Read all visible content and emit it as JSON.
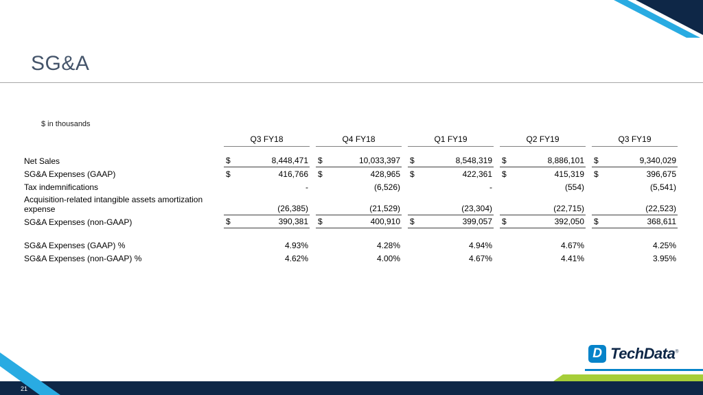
{
  "colors": {
    "brand_navy": "#0e2747",
    "brand_cyan": "#29abe2",
    "brand_green": "#a6ce39",
    "brand_blue": "#0683c9",
    "title_color": "#44546a",
    "rule_gray": "#a6a6a6",
    "line_dark": "#3d3d3d",
    "line_header": "#808080"
  },
  "slide": {
    "title": "SG&A",
    "page_number": "21"
  },
  "table": {
    "units_note": "$ in thousands",
    "currency_symbol": "$",
    "columns": [
      "Q3 FY18",
      "Q4 FY18",
      "Q1 FY19",
      "Q2 FY19",
      "Q3 FY19"
    ],
    "rows": [
      {
        "label": "Net Sales",
        "dollar": true,
        "underline": true,
        "values": [
          "8,448,471",
          "10,033,397",
          "8,548,319",
          "8,886,101",
          "9,340,029"
        ]
      },
      {
        "label": "SG&A Expenses (GAAP)",
        "dollar": true,
        "underline": false,
        "values": [
          "416,766",
          "428,965",
          "422,361",
          "415,319",
          "396,675"
        ]
      },
      {
        "label": "Tax indemnifications",
        "dollar": false,
        "underline": false,
        "values": [
          "-",
          "(6,526)",
          "-",
          "(554)",
          "(5,541)"
        ]
      },
      {
        "label": "Acquisition-related intangible assets amortization expense",
        "dollar": false,
        "underline": true,
        "values": [
          "(26,385)",
          "(21,529)",
          "(23,304)",
          "(22,715)",
          "(22,523)"
        ]
      },
      {
        "label": "SG&A Expenses (non-GAAP)",
        "dollar": true,
        "underline": true,
        "values": [
          "390,381",
          "400,910",
          "399,057",
          "392,050",
          "368,611"
        ]
      },
      {
        "label": "SG&A Expenses (GAAP) %",
        "dollar": false,
        "underline": false,
        "gap_above": true,
        "values": [
          "4.93%",
          "4.28%",
          "4.94%",
          "4.67%",
          "4.25%"
        ]
      },
      {
        "label": "SG&A Expenses (non-GAAP) %",
        "dollar": false,
        "underline": false,
        "values": [
          "4.62%",
          "4.00%",
          "4.67%",
          "4.41%",
          "3.95%"
        ]
      }
    ]
  },
  "logo": {
    "icon_letter": "D",
    "brand": "TechData",
    "mark": "®"
  }
}
